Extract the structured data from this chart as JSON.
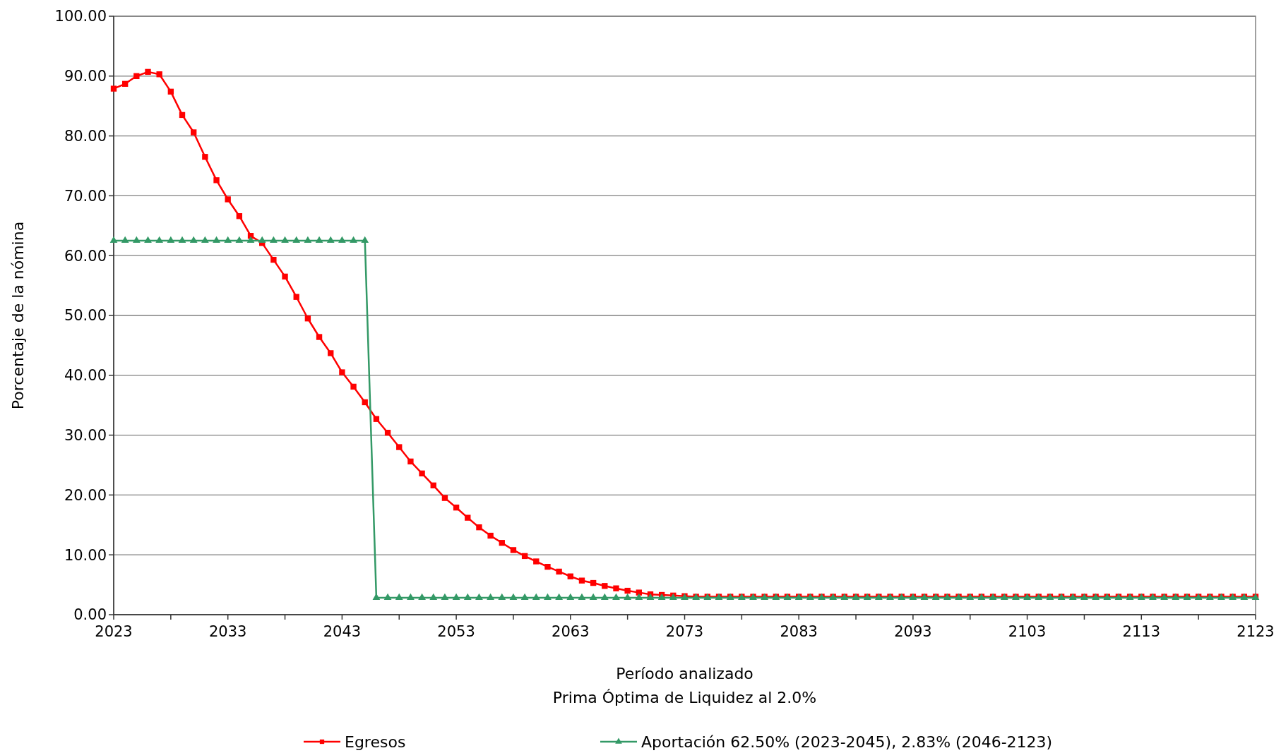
{
  "chart_data": {
    "type": "line",
    "xlabel": "Período analizado\nPrima Óptima de Liquidez al 2.0%",
    "ylabel": "Porcentaje de la nómina",
    "xlim": [
      2023,
      2123
    ],
    "ylim": [
      0,
      100
    ],
    "xticks": [
      2023,
      {
        "value": 2028,
        "label": null
      },
      2033,
      {
        "value": 2038,
        "label": null
      },
      2043,
      {
        "value": 2048,
        "label": null
      },
      2053,
      {
        "value": 2058,
        "label": null
      },
      2063,
      {
        "value": 2068,
        "label": null
      },
      2073,
      {
        "value": 2078,
        "label": null
      },
      2083,
      {
        "value": 2088,
        "label": null
      },
      2093,
      {
        "value": 2098,
        "label": null
      },
      2103,
      {
        "value": 2108,
        "label": null
      },
      2113,
      {
        "value": 2118,
        "label": null
      },
      2123
    ],
    "yticks": [
      {
        "value": 0,
        "label": "0.00"
      },
      {
        "value": 10,
        "label": "10.00"
      },
      {
        "value": 20,
        "label": "20.00"
      },
      {
        "value": 30,
        "label": "30.00"
      },
      {
        "value": 40,
        "label": "40.00"
      },
      {
        "value": 50,
        "label": "50.00"
      },
      {
        "value": 60,
        "label": "60.00"
      },
      {
        "value": 70,
        "label": "70.00"
      },
      {
        "value": 80,
        "label": "80.00"
      },
      {
        "value": 90,
        "label": "90.00"
      },
      {
        "value": 100,
        "label": "100.00"
      }
    ],
    "grid": "y",
    "legend": "bottom",
    "line_style": "solid",
    "series": [
      {
        "name": "Egresos",
        "color": "#ff0000",
        "marker": "square",
        "x": [
          2023,
          2024,
          2025,
          2026,
          2027,
          2028,
          2029,
          2030,
          2031,
          2032,
          2033,
          2034,
          2035,
          2036,
          2037,
          2038,
          2039,
          2040,
          2041,
          2042,
          2043,
          2044,
          2045,
          2046,
          2047,
          2048,
          2049,
          2050,
          2051,
          2052,
          2053,
          2054,
          2055,
          2056,
          2057,
          2058,
          2059,
          2060,
          2061,
          2062,
          2063,
          2064,
          2065,
          2066,
          2067,
          2068,
          2069,
          2070,
          2071,
          2072,
          2073,
          2074,
          2075,
          2076,
          2077,
          2078,
          2079,
          2080,
          2081,
          2082,
          2083,
          2084,
          2085,
          2086,
          2087,
          2088,
          2089,
          2090,
          2091,
          2092,
          2093,
          2094,
          2095,
          2096,
          2097,
          2098,
          2099,
          2100,
          2101,
          2102,
          2103,
          2104,
          2105,
          2106,
          2107,
          2108,
          2109,
          2110,
          2111,
          2112,
          2113,
          2114,
          2115,
          2116,
          2117,
          2118,
          2119,
          2120,
          2121,
          2122,
          2123
        ],
        "values": [
          87.9,
          88.7,
          90.0,
          90.7,
          90.3,
          87.4,
          83.5,
          80.6,
          76.5,
          72.6,
          69.4,
          66.6,
          63.3,
          62.1,
          59.3,
          56.5,
          53.1,
          49.5,
          46.4,
          43.7,
          40.5,
          38.1,
          35.5,
          32.7,
          30.4,
          28.0,
          25.6,
          23.6,
          21.6,
          19.5,
          17.9,
          16.2,
          14.6,
          13.2,
          12.0,
          10.8,
          9.8,
          8.9,
          8.0,
          7.2,
          6.4,
          5.7,
          5.3,
          4.8,
          4.4,
          4.0,
          3.7,
          3.4,
          3.3,
          3.2,
          3.1,
          3.0,
          3.0,
          3.0,
          3.0,
          3.0,
          3.0,
          3.0,
          3.0,
          3.0,
          3.0,
          3.0,
          3.0,
          3.0,
          3.0,
          3.0,
          3.0,
          3.0,
          3.0,
          3.0,
          3.0,
          3.0,
          3.0,
          3.0,
          3.0,
          3.0,
          3.0,
          3.0,
          3.0,
          3.0,
          3.0,
          3.0,
          3.0,
          3.0,
          3.0,
          3.0,
          3.0,
          3.0,
          3.0,
          3.0,
          3.0,
          3.0,
          3.0,
          3.0,
          3.0,
          3.0,
          3.0,
          3.0,
          3.0,
          3.0,
          3.0
        ]
      },
      {
        "name": "Aportación 62.50% (2023-2045), 2.83% (2046-2123)",
        "color": "#339966",
        "marker": "triangle",
        "x": [
          2023,
          2024,
          2025,
          2026,
          2027,
          2028,
          2029,
          2030,
          2031,
          2032,
          2033,
          2034,
          2035,
          2036,
          2037,
          2038,
          2039,
          2040,
          2041,
          2042,
          2043,
          2044,
          2045,
          2046,
          2047,
          2048,
          2049,
          2050,
          2051,
          2052,
          2053,
          2054,
          2055,
          2056,
          2057,
          2058,
          2059,
          2060,
          2061,
          2062,
          2063,
          2064,
          2065,
          2066,
          2067,
          2068,
          2069,
          2070,
          2071,
          2072,
          2073,
          2074,
          2075,
          2076,
          2077,
          2078,
          2079,
          2080,
          2081,
          2082,
          2083,
          2084,
          2085,
          2086,
          2087,
          2088,
          2089,
          2090,
          2091,
          2092,
          2093,
          2094,
          2095,
          2096,
          2097,
          2098,
          2099,
          2100,
          2101,
          2102,
          2103,
          2104,
          2105,
          2106,
          2107,
          2108,
          2109,
          2110,
          2111,
          2112,
          2113,
          2114,
          2115,
          2116,
          2117,
          2118,
          2119,
          2120,
          2121,
          2122,
          2123
        ],
        "values": [
          62.5,
          62.5,
          62.5,
          62.5,
          62.5,
          62.5,
          62.5,
          62.5,
          62.5,
          62.5,
          62.5,
          62.5,
          62.5,
          62.5,
          62.5,
          62.5,
          62.5,
          62.5,
          62.5,
          62.5,
          62.5,
          62.5,
          62.5,
          2.83,
          2.83,
          2.83,
          2.83,
          2.83,
          2.83,
          2.83,
          2.83,
          2.83,
          2.83,
          2.83,
          2.83,
          2.83,
          2.83,
          2.83,
          2.83,
          2.83,
          2.83,
          2.83,
          2.83,
          2.83,
          2.83,
          2.83,
          2.83,
          2.83,
          2.83,
          2.83,
          2.83,
          2.83,
          2.83,
          2.83,
          2.83,
          2.83,
          2.83,
          2.83,
          2.83,
          2.83,
          2.83,
          2.83,
          2.83,
          2.83,
          2.83,
          2.83,
          2.83,
          2.83,
          2.83,
          2.83,
          2.83,
          2.83,
          2.83,
          2.83,
          2.83,
          2.83,
          2.83,
          2.83,
          2.83,
          2.83,
          2.83,
          2.83,
          2.83,
          2.83,
          2.83,
          2.83,
          2.83,
          2.83,
          2.83,
          2.83,
          2.83,
          2.83,
          2.83,
          2.83,
          2.83,
          2.83,
          2.83,
          2.83,
          2.83,
          2.83,
          2.83
        ]
      }
    ]
  }
}
